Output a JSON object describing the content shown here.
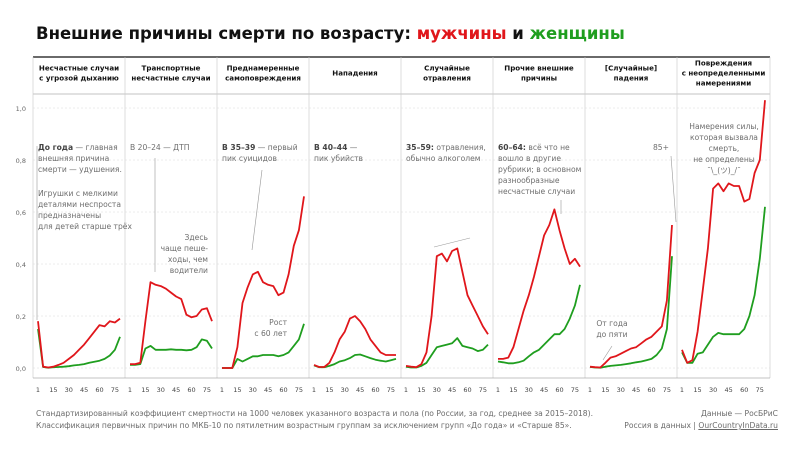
{
  "title": {
    "prefix": "Внешние причины смерти по возрасту: ",
    "men": "мужчины",
    "and": " и ",
    "women": "женщины"
  },
  "colors": {
    "men": "#e0161b",
    "women": "#1f9e1f",
    "annotation": "#8a8a8a",
    "grid": "#d8d8d8"
  },
  "footer": {
    "line1": "Стандартизированный коэффициент смертности на 1000 человек указанного возраста и пола (по России, за год, среднее за 2015–2018).",
    "line2": "Классификация первичных причин по МКБ-10 по пятилетним возрастным группам за исключением групп «До года» и «Старше 85»."
  },
  "credit": {
    "line1": "Данные — РосБРиС",
    "line2_prefix": "Россия в данных | ",
    "link": "OurCountryInData.ru"
  },
  "chart_data": {
    "type": "line",
    "ylim": [
      0,
      1.0
    ],
    "y_ticks": [
      "0,0",
      "0,2",
      "0,4",
      "0,6",
      "0,8",
      "1,0"
    ],
    "y_tick_values": [
      0,
      0.2,
      0.4,
      0.6,
      0.8,
      1.0
    ],
    "x_ticks": [
      "1",
      "15",
      "30",
      "45",
      "60",
      "75"
    ],
    "x_tick_index": [
      0,
      3,
      6,
      9,
      12,
      15
    ],
    "series_names": [
      "мужчины",
      "женщины"
    ],
    "panels": [
      {
        "title": [
          "Несчастные случаи",
          "с угрозой дыханию"
        ],
        "men": [
          0.18,
          0.005,
          0.002,
          0.005,
          0.012,
          0.02,
          0.035,
          0.05,
          0.07,
          0.09,
          0.115,
          0.14,
          0.165,
          0.16,
          0.18,
          0.175,
          0.19
        ],
        "women": [
          0.15,
          0.004,
          0.001,
          0.003,
          0.004,
          0.005,
          0.007,
          0.01,
          0.012,
          0.015,
          0.02,
          0.024,
          0.028,
          0.035,
          0.048,
          0.07,
          0.12
        ]
      },
      {
        "title": [
          "Транспортные",
          "несчастные случаи"
        ],
        "men": [
          0.015,
          0.015,
          0.02,
          0.18,
          0.33,
          0.32,
          0.315,
          0.305,
          0.29,
          0.275,
          0.265,
          0.205,
          0.195,
          0.2,
          0.225,
          0.23,
          0.18
        ],
        "women": [
          0.012,
          0.012,
          0.015,
          0.075,
          0.085,
          0.07,
          0.07,
          0.07,
          0.072,
          0.07,
          0.07,
          0.068,
          0.07,
          0.08,
          0.11,
          0.105,
          0.075
        ]
      },
      {
        "title": [
          "Преднамеренные",
          "самоповреждения"
        ],
        "men": [
          0.0,
          0.0,
          0.0,
          0.08,
          0.25,
          0.31,
          0.36,
          0.37,
          0.33,
          0.32,
          0.315,
          0.28,
          0.29,
          0.36,
          0.47,
          0.53,
          0.66
        ],
        "women": [
          0.0,
          0.0,
          0.0,
          0.035,
          0.025,
          0.035,
          0.045,
          0.045,
          0.05,
          0.05,
          0.05,
          0.045,
          0.05,
          0.06,
          0.085,
          0.11,
          0.17
        ]
      },
      {
        "title": [
          "Нападения"
        ],
        "men": [
          0.012,
          0.004,
          0.004,
          0.02,
          0.06,
          0.11,
          0.14,
          0.19,
          0.2,
          0.18,
          0.15,
          0.11,
          0.085,
          0.06,
          0.05,
          0.05,
          0.05
        ],
        "women": [
          0.01,
          0.003,
          0.003,
          0.008,
          0.015,
          0.025,
          0.03,
          0.038,
          0.05,
          0.052,
          0.045,
          0.038,
          0.032,
          0.028,
          0.025,
          0.03,
          0.035
        ]
      },
      {
        "title": [
          "Случайные",
          "отравления"
        ],
        "men": [
          0.008,
          0.005,
          0.003,
          0.015,
          0.06,
          0.2,
          0.43,
          0.44,
          0.41,
          0.45,
          0.46,
          0.37,
          0.28,
          0.24,
          0.2,
          0.16,
          0.13
        ],
        "women": [
          0.005,
          0.002,
          0.002,
          0.008,
          0.02,
          0.05,
          0.08,
          0.085,
          0.09,
          0.095,
          0.115,
          0.085,
          0.08,
          0.075,
          0.065,
          0.07,
          0.09
        ]
      },
      {
        "title": [
          "Прочие внешние",
          "причины"
        ],
        "men": [
          0.035,
          0.035,
          0.04,
          0.08,
          0.15,
          0.22,
          0.28,
          0.35,
          0.43,
          0.51,
          0.55,
          0.61,
          0.53,
          0.46,
          0.4,
          0.42,
          0.39
        ],
        "women": [
          0.025,
          0.022,
          0.018,
          0.018,
          0.022,
          0.028,
          0.045,
          0.06,
          0.07,
          0.09,
          0.11,
          0.13,
          0.13,
          0.15,
          0.19,
          0.24,
          0.32
        ]
      },
      {
        "title": [
          "[Случайные]",
          "падения"
        ],
        "men": [
          0.005,
          0.003,
          0.002,
          0.02,
          0.04,
          0.045,
          0.055,
          0.065,
          0.075,
          0.08,
          0.095,
          0.11,
          0.12,
          0.14,
          0.16,
          0.26,
          0.55
        ],
        "women": [
          0.004,
          0.002,
          0.001,
          0.005,
          0.008,
          0.01,
          0.012,
          0.015,
          0.018,
          0.022,
          0.025,
          0.03,
          0.035,
          0.05,
          0.075,
          0.15,
          0.43
        ]
      },
      {
        "title": [
          "Повреждения",
          "с неопределенными",
          "намерениями"
        ],
        "men": [
          0.07,
          0.02,
          0.03,
          0.14,
          0.3,
          0.46,
          0.69,
          0.71,
          0.68,
          0.71,
          0.7,
          0.7,
          0.64,
          0.65,
          0.75,
          0.8,
          1.03
        ],
        "women": [
          0.06,
          0.02,
          0.02,
          0.055,
          0.06,
          0.09,
          0.12,
          0.135,
          0.13,
          0.13,
          0.13,
          0.13,
          0.15,
          0.2,
          0.28,
          0.42,
          0.62
        ]
      }
    ],
    "annotations": [
      {
        "panel": 0,
        "text": [
          "До года — главная",
          "внешняя причина",
          "смерти — удушения."
        ],
        "bold_first": "До года"
      },
      {
        "panel": 0,
        "text": [
          "Игрушки с мелкими",
          "деталями неспроста",
          "предназначены",
          "для детей старше трёх"
        ]
      },
      {
        "panel": 1,
        "text": [
          "В 20–24 — ДТП"
        ]
      },
      {
        "panel": 1,
        "text": [
          "Здесь",
          "чаще пеше-",
          "ходы, чем",
          "водители"
        ]
      },
      {
        "panel": 2,
        "text": [
          "В 35–39 — первый",
          "пик суицидов"
        ],
        "bold_first": "В 35–39"
      },
      {
        "panel": 2,
        "text": [
          "Рост",
          "с 60 лет"
        ]
      },
      {
        "panel": 3,
        "text": [
          "В 40–44 —",
          "пик убийств"
        ],
        "bold_first": "В 40–44"
      },
      {
        "panel": 4,
        "text": [
          "35–59: отравления,",
          "обычно алкоголем"
        ],
        "bold_first": "35–59:"
      },
      {
        "panel": 5,
        "text": [
          "60–64: всё что не",
          "вошло в другие",
          "рубрики; в основном",
          "разнообразные",
          "несчастные случаи"
        ],
        "bold_first": "60–64:"
      },
      {
        "panel": 6,
        "text": [
          "85+"
        ]
      },
      {
        "panel": 6,
        "text": [
          "От года",
          "до пяти"
        ]
      },
      {
        "panel": 7,
        "text": [
          "Намерения силы,",
          "которая вызвала",
          "смерть,",
          "не определены",
          "¯\\_(ツ)_/¯"
        ]
      }
    ]
  }
}
